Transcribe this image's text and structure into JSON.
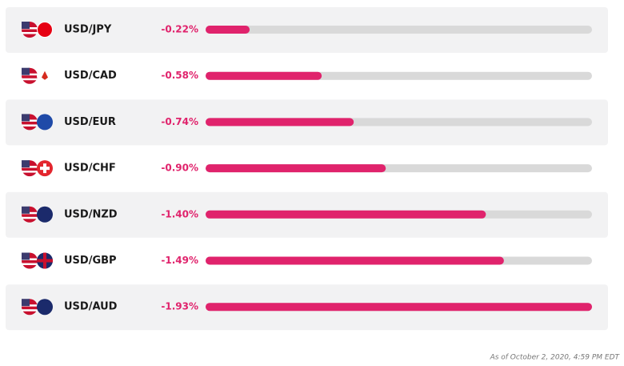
{
  "chart_data": {
    "type": "bar",
    "orientation": "horizontal",
    "categories": [
      "USD/JPY",
      "USD/CAD",
      "USD/EUR",
      "USD/CHF",
      "USD/NZD",
      "USD/GBP",
      "USD/AUD"
    ],
    "values": [
      -0.22,
      -0.58,
      -0.74,
      -0.9,
      -1.4,
      -1.49,
      -1.93
    ],
    "value_labels": [
      "-0.22%",
      "-0.58%",
      "-0.74%",
      "-0.90%",
      "-1.40%",
      "-1.49%",
      "-1.93%"
    ],
    "color": "#e0236c",
    "footnote": "As of October 2, 2020, 4:59 PM EDT"
  }
}
